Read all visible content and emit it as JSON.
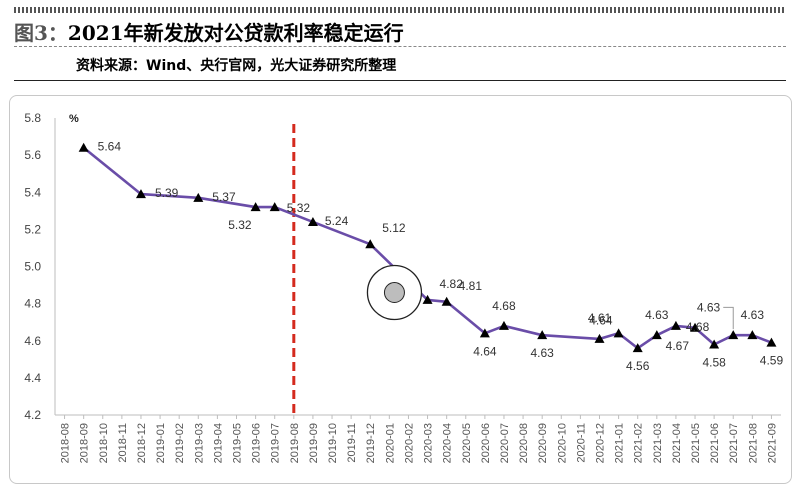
{
  "header": {
    "figure_label": "图3：",
    "title": "2021年新发放对公贷款利率稳定运行",
    "source": "资料来源：Wind、央行官网，光大证券研究所整理"
  },
  "chart_data": {
    "type": "line",
    "ylabel": "%",
    "ylim": [
      4.2,
      5.8
    ],
    "yticks": [
      4.2,
      4.4,
      4.6,
      4.8,
      5.0,
      5.2,
      5.4,
      5.6,
      5.8
    ],
    "categories": [
      "2018-08",
      "2018-09",
      "2018-10",
      "2018-11",
      "2018-12",
      "2019-01",
      "2019-02",
      "2019-03",
      "2019-04",
      "2019-05",
      "2019-06",
      "2019-07",
      "2019-08",
      "2019-09",
      "2019-10",
      "2019-11",
      "2019-12",
      "2020-01",
      "2020-02",
      "2020-03",
      "2020-04",
      "2020-05",
      "2020-06",
      "2020-07",
      "2020-08",
      "2020-09",
      "2020-10",
      "2020-11",
      "2020-12",
      "2021-01",
      "2021-02",
      "2021-03",
      "2021-04",
      "2021-05",
      "2021-06",
      "2021-07",
      "2021-08",
      "2021-09"
    ],
    "series": [
      {
        "color": "#6a4da8",
        "marker": "triangle",
        "points": [
          {
            "x": "2018-09",
            "y": 5.64,
            "label": "5.64"
          },
          {
            "x": "2018-12",
            "y": 5.39,
            "label": "5.39"
          },
          {
            "x": "2019-03",
            "y": 5.37,
            "label": "5.37"
          },
          {
            "x": "2019-06",
            "y": 5.32,
            "label": "5.32"
          },
          {
            "x": "2019-07",
            "y": 5.32,
            "label": "5.32"
          },
          {
            "x": "2019-09",
            "y": 5.24,
            "label": "5.24"
          },
          {
            "x": "2019-12",
            "y": 5.12,
            "label": "5.12"
          },
          {
            "x": "2020-03",
            "y": 4.82,
            "label": "4.82"
          },
          {
            "x": "2020-04",
            "y": 4.81,
            "label": "4.81"
          },
          {
            "x": "2020-06",
            "y": 4.64,
            "label": "4.64"
          },
          {
            "x": "2020-07",
            "y": 4.68,
            "label": "4.68"
          },
          {
            "x": "2020-09",
            "y": 4.63,
            "label": "4.63"
          },
          {
            "x": "2020-12",
            "y": 4.61,
            "label": "4.61"
          },
          {
            "x": "2021-01",
            "y": 4.64,
            "label": "4.64"
          },
          {
            "x": "2021-02",
            "y": 4.56,
            "label": "4.56"
          },
          {
            "x": "2021-03",
            "y": 4.63,
            "label": "4.63"
          },
          {
            "x": "2021-04",
            "y": 4.68,
            "label": "4.68"
          },
          {
            "x": "2021-05",
            "y": 4.67,
            "label": "4.67"
          },
          {
            "x": "2021-06",
            "y": 4.58,
            "label": "4.58"
          },
          {
            "x": "2021-07",
            "y": 4.63,
            "label": "4.63"
          },
          {
            "x": "2021-08",
            "y": 4.63,
            "label": "4.63"
          },
          {
            "x": "2021-09",
            "y": 4.59,
            "label": "4.59"
          }
        ]
      }
    ],
    "reference_line": {
      "x": "2019-08",
      "color": "#d42a1e",
      "style": "dashed"
    },
    "grid": false,
    "legend": "none"
  }
}
